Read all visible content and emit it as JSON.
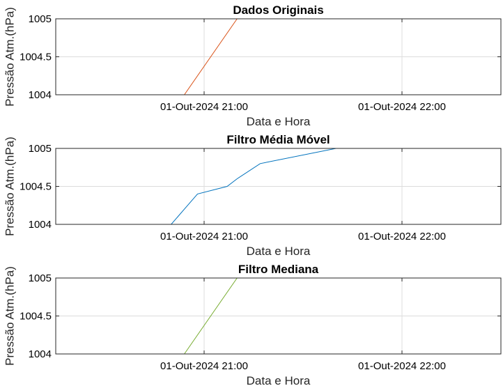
{
  "chart_data": [
    {
      "type": "line",
      "title": "Dados Originais",
      "xlabel": "Data e Hora",
      "ylabel": "Pressão Atm.(hPa)",
      "x_ticks": [
        "01-Out-2024 21:00",
        "01-Out-2024 22:00"
      ],
      "y_ticks": [
        "1004",
        "1004.5",
        "1005"
      ],
      "ylim": [
        1004,
        1005
      ],
      "grid": true,
      "line_color": "#D95319",
      "series": [
        {
          "x": [
            "01-Out-2024 20:43",
            "01-Out-2024 20:54",
            "01-Out-2024 21:10",
            "01-Out-2024 22:15"
          ],
          "y": [
            1004,
            1004,
            1005,
            1005
          ]
        }
      ]
    },
    {
      "type": "line",
      "title": "Filtro Média Móvel",
      "xlabel": "Data e Hora",
      "ylabel": "Pressão Atm.(hPa)",
      "x_ticks": [
        "01-Out-2024 21:00",
        "01-Out-2024 22:00"
      ],
      "y_ticks": [
        "1004",
        "1004.5",
        "1005"
      ],
      "ylim": [
        1004,
        1005
      ],
      "grid": true,
      "line_color": "#0072BD",
      "series": [
        {
          "x": [
            "01-Out-2024 20:43",
            "01-Out-2024 20:45",
            "01-Out-2024 20:50",
            "01-Out-2024 20:54",
            "01-Out-2024 20:58",
            "01-Out-2024 21:07",
            "01-Out-2024 21:10",
            "01-Out-2024 21:17",
            "01-Out-2024 21:40",
            "01-Out-2024 22:15"
          ],
          "y": [
            1004,
            1004,
            1004,
            1004.2,
            1004.4,
            1004.5,
            1004.6,
            1004.8,
            1005,
            1005
          ]
        }
      ]
    },
    {
      "type": "line",
      "title": "Filtro Mediana",
      "xlabel": "Data e Hora",
      "ylabel": "Pressão Atm.(hPa)",
      "x_ticks": [
        "01-Out-2024 21:00",
        "01-Out-2024 22:00"
      ],
      "y_ticks": [
        "1004",
        "1004.5",
        "1005"
      ],
      "ylim": [
        1004,
        1005
      ],
      "grid": true,
      "line_color": "#77AC30",
      "series": [
        {
          "x": [
            "01-Out-2024 20:43",
            "01-Out-2024 20:54",
            "01-Out-2024 21:10",
            "01-Out-2024 22:15"
          ],
          "y": [
            1004,
            1004,
            1005,
            1005
          ]
        }
      ]
    }
  ]
}
